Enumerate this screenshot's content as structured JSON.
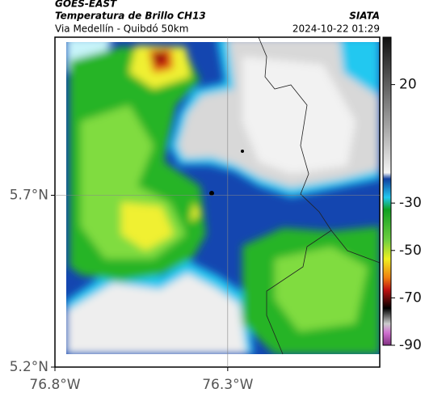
{
  "header": {
    "source": "GOES-EAST",
    "product": "Temperatura de Brillo CH13",
    "region": "Via Medellín - Quibdó 50km",
    "agency": "SIATA",
    "timestamp": "2024-10-22 01:29"
  },
  "map": {
    "xlim": [
      -76.8,
      -75.86
    ],
    "ylim": [
      5.2,
      6.16
    ],
    "xticks": [
      {
        "value": -76.8,
        "label": "76.8°W"
      },
      {
        "value": -76.3,
        "label": "76.3°W"
      }
    ],
    "yticks": [
      {
        "value": 5.2,
        "label": "5.2°N"
      },
      {
        "value": 5.7,
        "label": "5.7°N"
      }
    ],
    "colorbar": {
      "lim": [
        40,
        -90
      ],
      "ticks": [
        20,
        -30,
        -50,
        -70,
        -90
      ]
    }
  }
}
